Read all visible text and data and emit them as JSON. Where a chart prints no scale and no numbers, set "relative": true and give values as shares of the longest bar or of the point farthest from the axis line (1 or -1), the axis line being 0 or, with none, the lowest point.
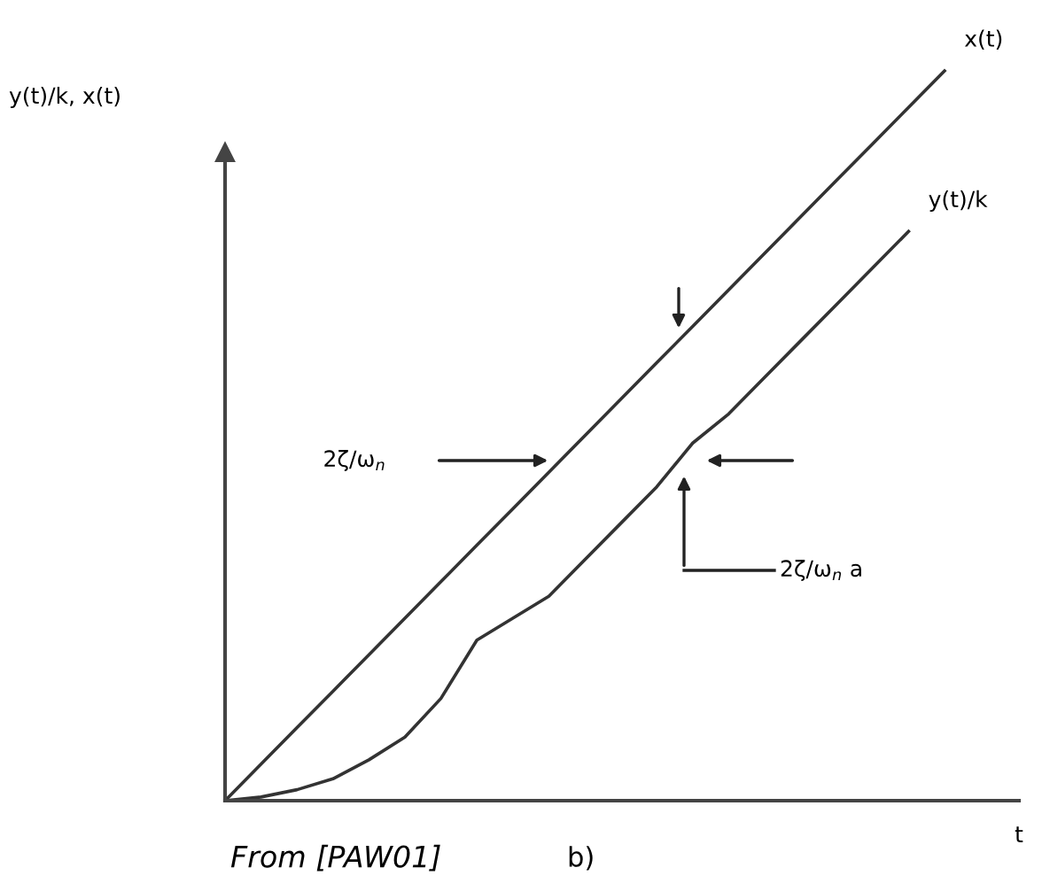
{
  "chart_data": {
    "type": "line",
    "relative": true,
    "legend": false,
    "marker": "none",
    "line_style": "solid",
    "ylabel": "y(t)/k, x(t)",
    "xlabel": "t",
    "categories": [
      null,
      null,
      null,
      null,
      null,
      null,
      null,
      null,
      null,
      null,
      null,
      null,
      null,
      null,
      null,
      null,
      null,
      null,
      null,
      null,
      null
    ],
    "series": [
      {
        "name": "x(t)",
        "color": "#333333",
        "values": [
          0,
          0.05,
          0.1,
          0.15,
          0.2,
          0.25,
          0.3,
          0.35,
          0.4,
          0.45,
          0.5,
          0.55,
          0.6,
          0.65,
          0.7,
          0.75,
          0.8,
          0.85,
          0.9,
          0.95,
          1
        ]
      },
      {
        "name": "y(t)/k",
        "color": "#333333",
        "values": [
          0,
          0.005,
          0.015,
          0.03,
          0.056,
          0.087,
          0.14,
          0.22,
          0.25,
          0.28,
          0.33,
          0.38,
          0.43,
          0.49,
          0.53,
          0.58,
          0.63,
          0.68,
          0.73,
          0.78,
          null
        ]
      }
    ],
    "annotations": [
      "2ζ/ω$_{n}$",
      "2ζ/ω$_{n}$ a",
      "From [PAW01]",
      "b)"
    ]
  }
}
